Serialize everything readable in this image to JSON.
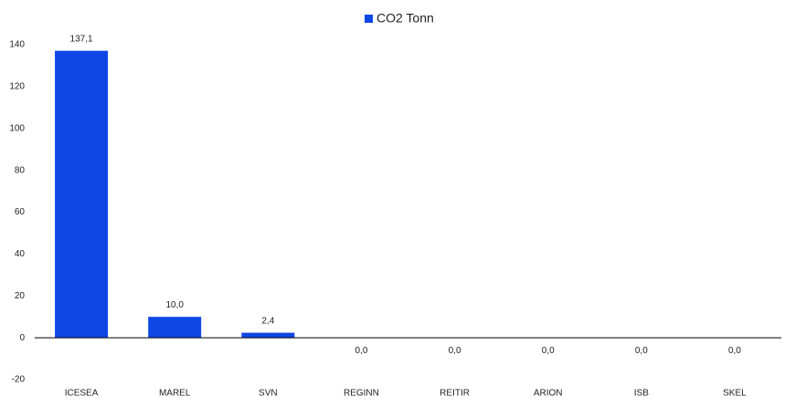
{
  "chart_data": {
    "type": "bar",
    "categories": [
      "ICESEA",
      "MAREL",
      "SVN",
      "REGINN",
      "REITIR",
      "ARION",
      "ISB",
      "SKEL"
    ],
    "series": [
      {
        "name": "CO2 Tonn",
        "color": "#0f47e6",
        "values": [
          137.1,
          10.0,
          2.4,
          0.0,
          0.0,
          0.0,
          0.0,
          0.0
        ],
        "value_labels": [
          "137,1",
          "10,0",
          "2,4",
          "0,0",
          "0,0",
          "0,0",
          "0,0",
          "0,0"
        ]
      }
    ],
    "ylim": [
      -20,
      140
    ],
    "yticks": [
      -20,
      0,
      20,
      40,
      60,
      80,
      100,
      120,
      140
    ],
    "grid": false,
    "legend": "top"
  }
}
